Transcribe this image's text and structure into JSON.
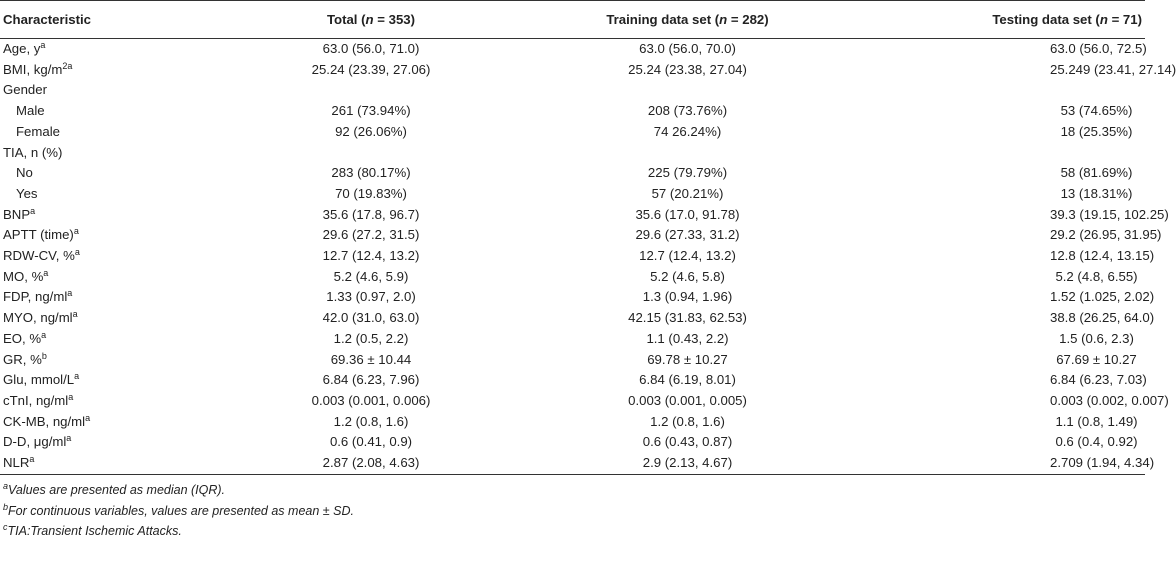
{
  "table": {
    "headers": {
      "characteristic": "Characteristic",
      "total": {
        "label": "Total (",
        "n": "n",
        "rest": " = 353)"
      },
      "training": {
        "label": "Training data set (",
        "n": "n",
        "rest": " = 282)"
      },
      "testing": {
        "label": "Testing data set (",
        "n": "n",
        "rest": " = 71)"
      }
    },
    "rows": [
      {
        "label": "Age, y",
        "sup": "a",
        "total": "63.0 (56.0, 71.0)",
        "training": "63.0 (56.0, 70.0)",
        "testing": "63.0 (56.0, 72.5)"
      },
      {
        "label": "BMI, kg/m",
        "sup": "2a",
        "total": "25.24 (23.39, 27.06)",
        "training": "25.24 (23.38, 27.04)",
        "testing": "25.249 (23.41, 27.14)"
      },
      {
        "label": "Gender",
        "sup": "",
        "total": "",
        "training": "",
        "testing": ""
      },
      {
        "label": "Male",
        "sup": "",
        "total": "261 (73.94%)",
        "training": "208 (73.76%)",
        "testing": "53 (74.65%)"
      },
      {
        "label": "Female",
        "sup": "",
        "total": "92 (26.06%)",
        "training": "74 26.24%)",
        "testing": "18 (25.35%)"
      },
      {
        "label": "TIA, n (%)",
        "sup": "",
        "total": "",
        "training": "",
        "testing": ""
      },
      {
        "label": "No",
        "sup": "",
        "total": "283 (80.17%)",
        "training": "225 (79.79%)",
        "testing": "58 (81.69%)"
      },
      {
        "label": "Yes",
        "sup": "",
        "total": "70 (19.83%)",
        "training": "57 (20.21%)",
        "testing": "13 (18.31%)"
      },
      {
        "label": "BNP",
        "sup": "a",
        "total": "35.6 (17.8, 96.7)",
        "training": "35.6 (17.0, 91.78)",
        "testing": "39.3 (19.15, 102.25)"
      },
      {
        "label": "APTT (time)",
        "sup": "a",
        "total": "29.6 (27.2, 31.5)",
        "training": "29.6 (27.33, 31.2)",
        "testing": "29.2 (26.95, 31.95)"
      },
      {
        "label": "RDW-CV, %",
        "sup": "a",
        "total": "12.7 (12.4, 13.2)",
        "training": "12.7 (12.4, 13.2)",
        "testing": "12.8 (12.4, 13.15)"
      },
      {
        "label": "MO, %",
        "sup": "a",
        "total": "5.2 (4.6, 5.9)",
        "training": "5.2 (4.6, 5.8)",
        "testing": "5.2 (4.8, 6.55)"
      },
      {
        "label": "FDP, ng/ml",
        "sup": "a",
        "total": "1.33 (0.97, 2.0)",
        "training": "1.3 (0.94, 1.96)",
        "testing": "1.52 (1.025, 2.02)"
      },
      {
        "label": "MYO, ng/ml",
        "sup": "a",
        "total": "42.0 (31.0, 63.0)",
        "training": "42.15 (31.83, 62.53)",
        "testing": "38.8 (26.25, 64.0)"
      },
      {
        "label": "EO, %",
        "sup": "a",
        "total": "1.2 (0.5, 2.2)",
        "training": "1.1 (0.43, 2.2)",
        "testing": "1.5 (0.6, 2.3)"
      },
      {
        "label": "GR, %",
        "sup": "b",
        "total": "69.36 ± 10.44",
        "training": "69.78 ± 10.27",
        "testing": "67.69 ± 10.27"
      },
      {
        "label": "Glu, mmol/L",
        "sup": "a",
        "total": "6.84 (6.23, 7.96)",
        "training": "6.84 (6.19, 8.01)",
        "testing": "6.84 (6.23, 7.03)"
      },
      {
        "label": "cTnI, ng/ml",
        "sup": "a",
        "total": "0.003 (0.001, 0.006)",
        "training": "0.003 (0.001, 0.005)",
        "testing": "0.003 (0.002, 0.007)"
      },
      {
        "label": "CK-MB, ng/ml",
        "sup": "a",
        "total": "1.2 (0.8, 1.6)",
        "training": "1.2 (0.8, 1.6)",
        "testing": "1.1 (0.8, 1.49)"
      },
      {
        "label": "D-D, μg/ml",
        "sup": "a",
        "total": "0.6 (0.41, 0.9)",
        "training": "0.6 (0.43, 0.87)",
        "testing": "0.6 (0.4, 0.92)"
      },
      {
        "label": "NLR",
        "sup": "a",
        "total": "2.87 (2.08, 4.63)",
        "training": "2.9 (2.13, 4.67)",
        "testing": "2.709 (1.94, 4.34)"
      }
    ]
  },
  "footnotes": [
    {
      "sup": "a",
      "text": "Values are presented as median (IQR)."
    },
    {
      "sup": "b",
      "text": "For continuous variables, values are presented as mean ± SD."
    },
    {
      "sup": "c",
      "text": "TIA:Transient Ischemic Attacks."
    }
  ]
}
